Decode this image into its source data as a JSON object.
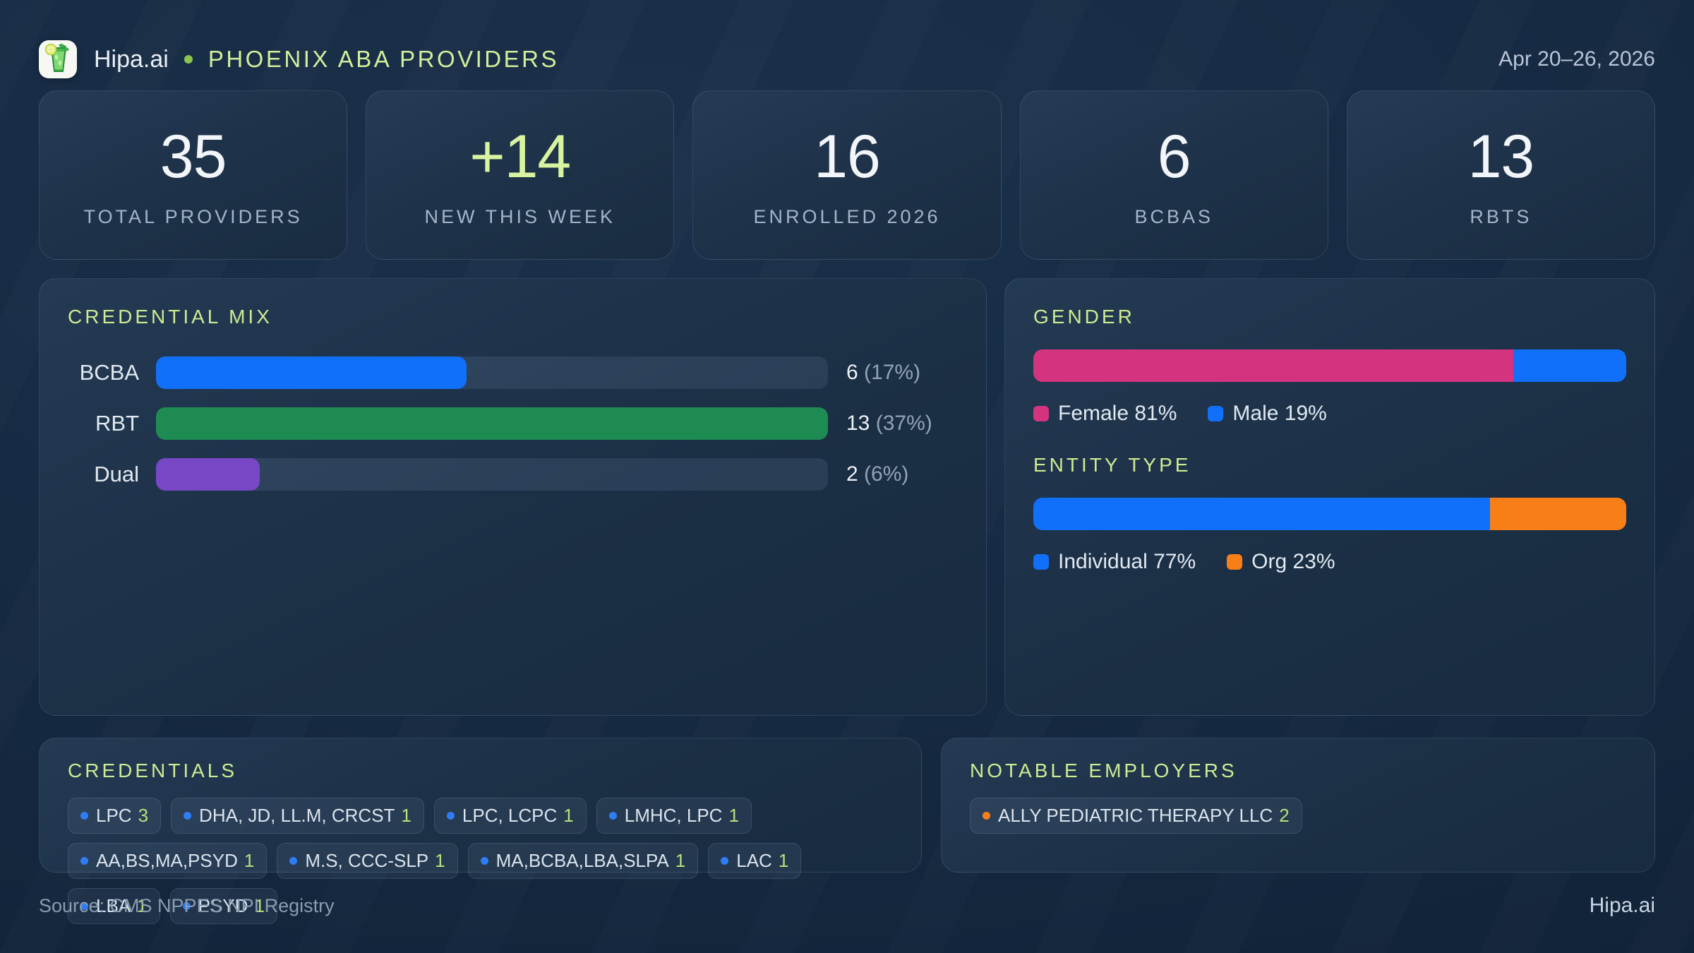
{
  "header": {
    "logo_icon": "mojito-drink-icon",
    "brand": "Hipa.ai",
    "separator_dot": "green-dot",
    "title": "PHOENIX ABA PROVIDERS",
    "date_range": "Apr 20–26, 2026"
  },
  "colors": {
    "accent_lime": "#d8f4a0",
    "heading_lime": "#cdeb92",
    "blue": "#1170fa",
    "green": "#1e8c52",
    "purple": "#7747c6",
    "pink": "#d4337f",
    "orange": "#f87f17",
    "tag_dot_blue": "#2f7df6",
    "tag_count_green": "#b9e07b"
  },
  "stat_cards": [
    {
      "value": "35",
      "label": "TOTAL PROVIDERS"
    },
    {
      "value": "+14",
      "label": "NEW THIS WEEK"
    },
    {
      "value": "16",
      "label": "ENROLLED 2026"
    },
    {
      "value": "6",
      "label": "BCBAS"
    },
    {
      "value": "13",
      "label": "RBTS"
    }
  ],
  "credential_mix": {
    "title": "CREDENTIAL MIX",
    "max_value": 13,
    "rows": [
      {
        "label": "BCBA",
        "count": "6",
        "pct": "(17%)",
        "bar_pct": 46.2,
        "color": "#1170fa"
      },
      {
        "label": "RBT",
        "count": "13",
        "pct": "(37%)",
        "bar_pct": 100,
        "color": "#1e8c52"
      },
      {
        "label": "Dual",
        "count": "2",
        "pct": "(6%)",
        "bar_pct": 15.4,
        "color": "#7747c6"
      }
    ]
  },
  "gender": {
    "title": "GENDER",
    "segments": [
      {
        "label": "Female",
        "legend_text": "Female 81%",
        "pct": 81,
        "color": "#d4337f"
      },
      {
        "label": "Male",
        "legend_text": "Male 19%",
        "pct": 19,
        "color": "#1170fa"
      }
    ]
  },
  "entity_type": {
    "title": "ENTITY TYPE",
    "segments": [
      {
        "label": "Individual",
        "legend_text": "Individual 77%",
        "pct": 77,
        "color": "#1170fa"
      },
      {
        "label": "Org",
        "legend_text": "Org 23%",
        "pct": 23,
        "color": "#f87f17"
      }
    ]
  },
  "credentials": {
    "title": "CREDENTIALS",
    "tags": [
      {
        "label": "LPC",
        "count": "3"
      },
      {
        "label": "DHA, JD, LL.M, CRCST",
        "count": "1"
      },
      {
        "label": "LPC, LCPC",
        "count": "1"
      },
      {
        "label": "LMHC, LPC",
        "count": "1"
      },
      {
        "label": "AA,BS,MA,PSYD",
        "count": "1"
      },
      {
        "label": "M.S, CCC-SLP",
        "count": "1"
      },
      {
        "label": "MA,BCBA,LBA,SLPA",
        "count": "1"
      },
      {
        "label": "LAC",
        "count": "1"
      },
      {
        "label": "LBA",
        "count": "1"
      },
      {
        "label": "PSYD",
        "count": "1"
      }
    ]
  },
  "notable_employers": {
    "title": "NOTABLE EMPLOYERS",
    "tags": [
      {
        "label": "ALLY PEDIATRIC THERAPY LLC",
        "count": "2"
      }
    ]
  },
  "footer": {
    "source": "Source: CMS NPPES NPI Registry",
    "brand": "Hipa.ai"
  },
  "chart_data": [
    {
      "type": "bar",
      "orientation": "horizontal",
      "title": "CREDENTIAL MIX",
      "categories": [
        "BCBA",
        "RBT",
        "Dual"
      ],
      "values": [
        6,
        13,
        2
      ],
      "value_labels": [
        "6 (17%)",
        "13 (37%)",
        "2 (6%)"
      ],
      "colors": [
        "#1170fa",
        "#1e8c52",
        "#7747c6"
      ],
      "xlim": [
        0,
        13
      ],
      "grid": false,
      "legend_position": "none"
    },
    {
      "type": "bar",
      "subtype": "stacked-percentage",
      "title": "GENDER",
      "categories": [
        "Female",
        "Male"
      ],
      "values": [
        81,
        19
      ],
      "colors": [
        "#d4337f",
        "#1170fa"
      ],
      "legend": [
        "Female 81%",
        "Male 19%"
      ],
      "legend_position": "bottom"
    },
    {
      "type": "bar",
      "subtype": "stacked-percentage",
      "title": "ENTITY TYPE",
      "categories": [
        "Individual",
        "Org"
      ],
      "values": [
        77,
        23
      ],
      "colors": [
        "#1170fa",
        "#f87f17"
      ],
      "legend": [
        "Individual 77%",
        "Org 23%"
      ],
      "legend_position": "bottom"
    }
  ]
}
